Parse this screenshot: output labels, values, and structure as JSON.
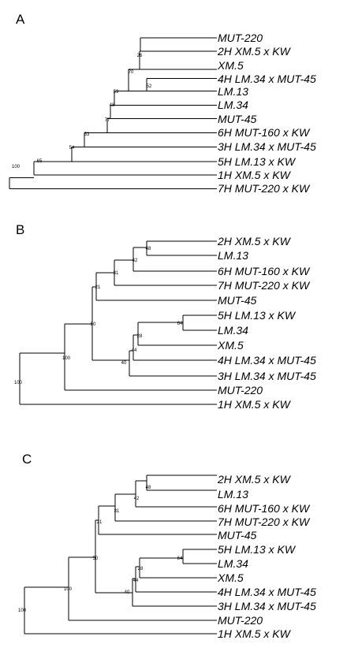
{
  "panels": [
    {
      "label": "A",
      "leaves": [
        "MUT-220",
        "2H XM.5 x KW",
        "XM.5",
        "4H LM.34 x MUT-45",
        "LM.13",
        "LM.34",
        "MUT-45",
        "6H MUT-160 x KW",
        "3H LM.34 x MUT-45",
        "5H LM.13 x KW",
        "1H XM.5 x KW",
        "7H MUT-220 x KW"
      ],
      "bootstrap": [
        "100",
        "65",
        "54",
        "53",
        "77",
        "48",
        "59",
        "70",
        "52",
        "26"
      ]
    },
    {
      "label": "B",
      "leaves": [
        "2H XM.5 x KW",
        "LM.13",
        "6H MUT-160 x KW",
        "7H MUT-220 x KW",
        "MUT-45",
        "5H LM.13 x KW",
        "LM.34",
        "XM.5",
        "4H LM.34 x MUT-45",
        "3H LM.34 x MUT-45",
        "MUT-220",
        "1H XM.5 x KW"
      ],
      "bootstrap": [
        "100",
        "100",
        "50",
        "21",
        "31",
        "42",
        "48",
        "40",
        "44",
        "28",
        "64"
      ]
    },
    {
      "label": "C",
      "leaves": [
        "2H XM.5 x KW",
        "LM.13",
        "6H MUT-160 x KW",
        "7H MUT-220 x KW",
        "MUT-45",
        "5H LM.13 x KW",
        "LM.34",
        "XM.5",
        "4H LM.34 x MUT-45",
        "3H LM.34 x MUT-45",
        "MUT-220",
        "1H XM.5 x KW"
      ],
      "bootstrap": [
        "100",
        "100",
        "50",
        "21",
        "31",
        "42",
        "48",
        "40",
        "44",
        "28",
        "64"
      ]
    }
  ]
}
